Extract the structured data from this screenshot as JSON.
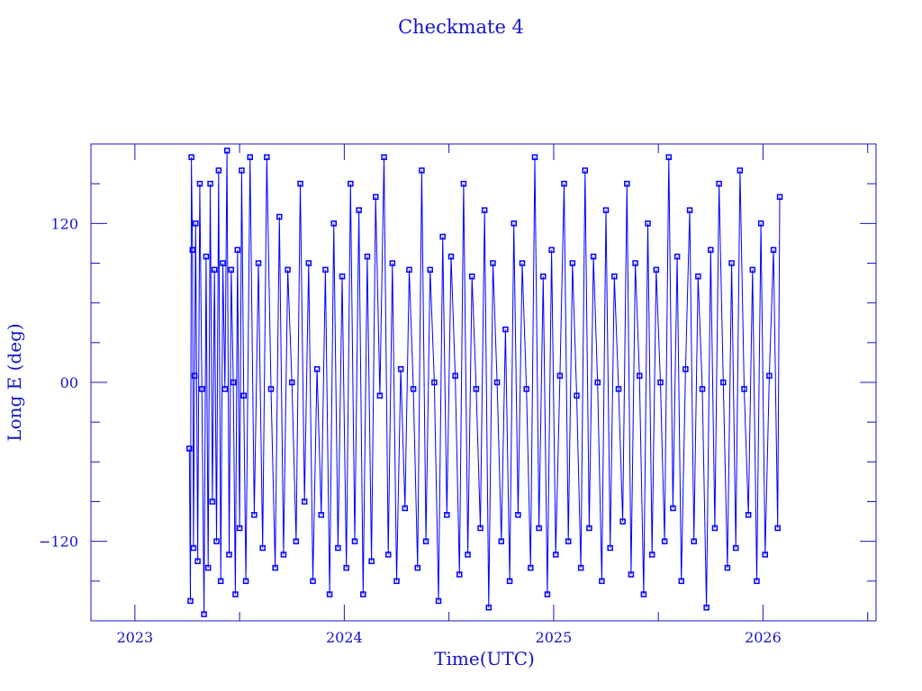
{
  "chart_data": {
    "type": "line",
    "title": "Checkmate 4",
    "xlabel": "Time(UTC)",
    "ylabel": "Long E (deg)",
    "xlim": [
      2022.79,
      2026.54
    ],
    "ylim": [
      -180,
      180
    ],
    "x_ticks": [
      {
        "value": 2023,
        "label": "2023"
      },
      {
        "value": 2024,
        "label": "2024"
      },
      {
        "value": 2025,
        "label": "2025"
      },
      {
        "value": 2026,
        "label": "2026"
      }
    ],
    "y_ticks": [
      {
        "value": 120,
        "label": "120"
      },
      {
        "value": 0,
        "label": "00"
      },
      {
        "value": -120,
        "label": "−120"
      }
    ],
    "grid": false,
    "marker": "square",
    "series": [
      {
        "name": "Checkmate 4",
        "color": "#0000ff",
        "points": [
          [
            2023.26,
            -50
          ],
          [
            2023.265,
            -165
          ],
          [
            2023.27,
            170
          ],
          [
            2023.275,
            100
          ],
          [
            2023.28,
            -125
          ],
          [
            2023.285,
            5
          ],
          [
            2023.29,
            120
          ],
          [
            2023.3,
            -135
          ],
          [
            2023.31,
            150
          ],
          [
            2023.32,
            -5
          ],
          [
            2023.33,
            -175
          ],
          [
            2023.34,
            95
          ],
          [
            2023.35,
            -140
          ],
          [
            2023.36,
            150
          ],
          [
            2023.37,
            -90
          ],
          [
            2023.38,
            85
          ],
          [
            2023.39,
            -120
          ],
          [
            2023.4,
            160
          ],
          [
            2023.41,
            -150
          ],
          [
            2023.42,
            90
          ],
          [
            2023.43,
            -5
          ],
          [
            2023.44,
            175
          ],
          [
            2023.45,
            -130
          ],
          [
            2023.46,
            85
          ],
          [
            2023.47,
            0
          ],
          [
            2023.48,
            -160
          ],
          [
            2023.49,
            100
          ],
          [
            2023.5,
            -110
          ],
          [
            2023.51,
            160
          ],
          [
            2023.52,
            -10
          ],
          [
            2023.53,
            -150
          ],
          [
            2023.55,
            170
          ],
          [
            2023.57,
            -100
          ],
          [
            2023.59,
            90
          ],
          [
            2023.61,
            -125
          ],
          [
            2023.63,
            170
          ],
          [
            2023.65,
            -5
          ],
          [
            2023.67,
            -140
          ],
          [
            2023.69,
            125
          ],
          [
            2023.71,
            -130
          ],
          [
            2023.73,
            85
          ],
          [
            2023.75,
            0
          ],
          [
            2023.77,
            -120
          ],
          [
            2023.79,
            150
          ],
          [
            2023.81,
            -90
          ],
          [
            2023.83,
            90
          ],
          [
            2023.85,
            -150
          ],
          [
            2023.87,
            10
          ],
          [
            2023.89,
            -100
          ],
          [
            2023.91,
            85
          ],
          [
            2023.93,
            -160
          ],
          [
            2023.95,
            120
          ],
          [
            2023.97,
            -125
          ],
          [
            2023.99,
            80
          ],
          [
            2024.01,
            -140
          ],
          [
            2024.03,
            150
          ],
          [
            2024.05,
            -120
          ],
          [
            2024.07,
            130
          ],
          [
            2024.09,
            -160
          ],
          [
            2024.11,
            95
          ],
          [
            2024.13,
            -135
          ],
          [
            2024.15,
            140
          ],
          [
            2024.17,
            -10
          ],
          [
            2024.19,
            170
          ],
          [
            2024.21,
            -130
          ],
          [
            2024.23,
            90
          ],
          [
            2024.25,
            -150
          ],
          [
            2024.27,
            10
          ],
          [
            2024.29,
            -95
          ],
          [
            2024.31,
            85
          ],
          [
            2024.33,
            -5
          ],
          [
            2024.35,
            -140
          ],
          [
            2024.37,
            160
          ],
          [
            2024.39,
            -120
          ],
          [
            2024.41,
            85
          ],
          [
            2024.43,
            0
          ],
          [
            2024.45,
            -165
          ],
          [
            2024.47,
            110
          ],
          [
            2024.49,
            -100
          ],
          [
            2024.51,
            95
          ],
          [
            2024.53,
            5
          ],
          [
            2024.55,
            -145
          ],
          [
            2024.57,
            150
          ],
          [
            2024.59,
            -130
          ],
          [
            2024.61,
            80
          ],
          [
            2024.63,
            -5
          ],
          [
            2024.65,
            -110
          ],
          [
            2024.67,
            130
          ],
          [
            2024.69,
            -170
          ],
          [
            2024.71,
            90
          ],
          [
            2024.73,
            0
          ],
          [
            2024.75,
            -120
          ],
          [
            2024.77,
            40
          ],
          [
            2024.79,
            -150
          ],
          [
            2024.81,
            120
          ],
          [
            2024.83,
            -100
          ],
          [
            2024.85,
            90
          ],
          [
            2024.87,
            -5
          ],
          [
            2024.89,
            -140
          ],
          [
            2024.91,
            170
          ],
          [
            2024.93,
            -110
          ],
          [
            2024.95,
            80
          ],
          [
            2024.97,
            -160
          ],
          [
            2024.99,
            100
          ],
          [
            2025.01,
            -130
          ],
          [
            2025.03,
            5
          ],
          [
            2025.05,
            150
          ],
          [
            2025.07,
            -120
          ],
          [
            2025.09,
            90
          ],
          [
            2025.11,
            -10
          ],
          [
            2025.13,
            -140
          ],
          [
            2025.15,
            160
          ],
          [
            2025.17,
            -110
          ],
          [
            2025.19,
            95
          ],
          [
            2025.21,
            0
          ],
          [
            2025.23,
            -150
          ],
          [
            2025.25,
            130
          ],
          [
            2025.27,
            -125
          ],
          [
            2025.29,
            80
          ],
          [
            2025.31,
            -5
          ],
          [
            2025.33,
            -105
          ],
          [
            2025.35,
            150
          ],
          [
            2025.37,
            -145
          ],
          [
            2025.39,
            90
          ],
          [
            2025.41,
            5
          ],
          [
            2025.43,
            -160
          ],
          [
            2025.45,
            120
          ],
          [
            2025.47,
            -130
          ],
          [
            2025.49,
            85
          ],
          [
            2025.51,
            0
          ],
          [
            2025.53,
            -120
          ],
          [
            2025.55,
            170
          ],
          [
            2025.57,
            -95
          ],
          [
            2025.59,
            95
          ],
          [
            2025.61,
            -150
          ],
          [
            2025.63,
            10
          ],
          [
            2025.65,
            130
          ],
          [
            2025.67,
            -120
          ],
          [
            2025.69,
            80
          ],
          [
            2025.71,
            -5
          ],
          [
            2025.73,
            -170
          ],
          [
            2025.75,
            100
          ],
          [
            2025.77,
            -110
          ],
          [
            2025.79,
            150
          ],
          [
            2025.81,
            0
          ],
          [
            2025.83,
            -140
          ],
          [
            2025.85,
            90
          ],
          [
            2025.87,
            -125
          ],
          [
            2025.89,
            160
          ],
          [
            2025.91,
            -5
          ],
          [
            2025.93,
            -100
          ],
          [
            2025.95,
            85
          ],
          [
            2025.97,
            -150
          ],
          [
            2025.99,
            120
          ],
          [
            2026.01,
            -130
          ],
          [
            2026.03,
            5
          ],
          [
            2026.05,
            100
          ],
          [
            2026.07,
            -110
          ],
          [
            2026.08,
            140
          ]
        ]
      }
    ]
  }
}
